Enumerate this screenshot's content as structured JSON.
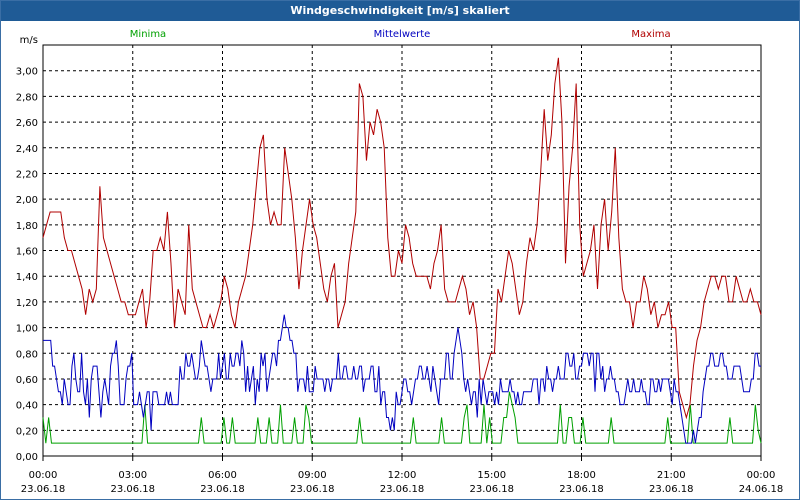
{
  "window": {
    "title": "Windgeschwindigkeit [m/s] skaliert"
  },
  "chart_data": {
    "type": "line",
    "title": "Windgeschwindigkeit [m/s] skaliert",
    "ylabel": "m/s",
    "ylim": [
      0,
      3.2
    ],
    "y_ticks": [
      "0,00",
      "0,20",
      "0,40",
      "0,60",
      "0,80",
      "1,00",
      "1,20",
      "1,40",
      "1,60",
      "1,80",
      "2,00",
      "2,20",
      "2,40",
      "2,60",
      "2,80",
      "3,00"
    ],
    "x_range_hours": [
      0,
      24
    ],
    "x_ticks": [
      {
        "time": "00:00",
        "date": "23.06.18"
      },
      {
        "time": "03:00",
        "date": "23.06.18"
      },
      {
        "time": "06:00",
        "date": "23.06.18"
      },
      {
        "time": "09:00",
        "date": "23.06.18"
      },
      {
        "time": "12:00",
        "date": "23.06.18"
      },
      {
        "time": "15:00",
        "date": "23.06.18"
      },
      {
        "time": "18:00",
        "date": "23.06.18"
      },
      {
        "time": "21:00",
        "date": "23.06.18"
      },
      {
        "time": "00:00",
        "date": "24.06.18"
      }
    ],
    "grid": true,
    "legend_position": "top",
    "series": [
      {
        "name": "Minima",
        "color": "#00a000",
        "values": [
          0.3,
          0.1,
          0.3,
          0.1,
          0.1,
          0.1,
          0.1,
          0.1,
          0.1,
          0.1,
          0.1,
          0.1,
          0.1,
          0.1,
          0.1,
          0.1,
          0.1,
          0.1,
          0.1,
          0.1,
          0.1,
          0.1,
          0.1,
          0.1,
          0.1,
          0.1,
          0.1,
          0.1,
          0.1,
          0.1,
          0.1,
          0.1,
          0.1,
          0.1,
          0.1,
          0.1,
          0.4,
          0.1,
          0.1,
          0.1,
          0.1,
          0.1,
          0.1,
          0.1,
          0.1,
          0.1,
          0.1,
          0.1,
          0.1,
          0.1,
          0.1,
          0.1,
          0.1,
          0.1,
          0.1,
          0.1,
          0.3,
          0.1,
          0.1,
          0.1,
          0.1,
          0.1,
          0.1,
          0.1,
          0.3,
          0.1,
          0.1,
          0.3,
          0.1,
          0.1,
          0.1,
          0.1,
          0.1,
          0.1,
          0.1,
          0.1,
          0.3,
          0.1,
          0.1,
          0.1,
          0.3,
          0.1,
          0.1,
          0.1,
          0.4,
          0.1,
          0.1,
          0.1,
          0.1,
          0.3,
          0.1,
          0.1,
          0.1,
          0.4,
          0.3,
          0.1,
          0.1,
          0.1,
          0.1,
          0.1,
          0.1,
          0.1,
          0.1,
          0.1,
          0.1,
          0.1,
          0.1,
          0.1,
          0.1,
          0.1,
          0.1,
          0.1,
          0.3,
          0.1,
          0.1,
          0.1,
          0.1,
          0.1,
          0.1,
          0.1,
          0.1,
          0.1,
          0.1,
          0.1,
          0.1,
          0.1,
          0.1,
          0.1,
          0.1,
          0.1,
          0.1,
          0.3,
          0.1,
          0.1,
          0.1,
          0.1,
          0.1,
          0.1,
          0.1,
          0.1,
          0.1,
          0.3,
          0.1,
          0.1,
          0.1,
          0.1,
          0.1,
          0.1,
          0.1,
          0.3,
          0.4,
          0.1,
          0.1,
          0.1,
          0.1,
          0.1,
          0.4,
          0.1,
          0.3,
          0.1,
          0.1,
          0.1,
          0.1,
          0.3,
          0.3,
          0.5,
          0.4,
          0.3,
          0.1,
          0.1,
          0.1,
          0.1,
          0.1,
          0.1,
          0.1,
          0.1,
          0.1,
          0.1,
          0.1,
          0.1,
          0.1,
          0.1,
          0.1,
          0.4,
          0.1,
          0.1,
          0.3,
          0.3,
          0.1,
          0.1,
          0.1,
          0.3,
          0.1,
          0.1,
          0.1,
          0.1,
          0.1,
          0.1,
          0.1,
          0.1,
          0.1,
          0.3,
          0.1,
          0.1,
          0.1,
          0.1,
          0.1,
          0.1,
          0.1,
          0.1,
          0.1,
          0.1,
          0.1,
          0.1,
          0.1,
          0.1,
          0.1,
          0.1,
          0.1,
          0.1,
          0.1,
          0.3,
          0.1,
          0.1,
          0.1,
          0.1,
          0.1,
          0.1,
          0.1,
          0.4,
          0.1,
          0.1,
          0.1,
          0.1,
          0.1,
          0.1,
          0.1,
          0.1,
          0.1,
          0.1,
          0.1,
          0.1,
          0.1,
          0.3,
          0.1,
          0.1,
          0.1,
          0.1,
          0.1,
          0.1,
          0.1,
          0.1,
          0.4,
          0.2,
          0.1
        ]
      },
      {
        "name": "Mittelwerte",
        "color": "#0000c0",
        "values": [
          0.9,
          0.9,
          0.9,
          0.9,
          0.9,
          0.7,
          0.7,
          0.6,
          0.5,
          0.5,
          0.4,
          0.6,
          0.5,
          0.4,
          0.4,
          0.7,
          0.8,
          0.6,
          0.5,
          0.5,
          0.8,
          0.5,
          0.4,
          0.6,
          0.3,
          0.6,
          0.7,
          0.7,
          0.7,
          0.5,
          0.3,
          0.5,
          0.6,
          0.5,
          0.4,
          0.7,
          0.8,
          0.8,
          0.9,
          0.7,
          0.4,
          0.4,
          0.4,
          0.6,
          0.7,
          0.7,
          0.8,
          0.4,
          0.4,
          0.4,
          0.5,
          0.4,
          0.3,
          0.4,
          0.5,
          0.5,
          0.2,
          0.5,
          0.5,
          0.5,
          0.4,
          0.4,
          0.4,
          0.4,
          0.5,
          0.4,
          0.5,
          0.4,
          0.4,
          0.4,
          0.4,
          0.7,
          0.6,
          0.6,
          0.8,
          0.7,
          0.7,
          0.8,
          0.7,
          0.6,
          0.6,
          0.7,
          0.9,
          0.8,
          0.7,
          0.7,
          0.6,
          0.5,
          0.6,
          0.6,
          0.6,
          0.8,
          0.6,
          0.7,
          0.8,
          0.6,
          0.6,
          0.8,
          0.7,
          0.7,
          0.8,
          0.8,
          0.7,
          0.9,
          0.8,
          0.5,
          0.7,
          0.5,
          0.6,
          0.7,
          0.4,
          0.6,
          0.5,
          0.8,
          0.7,
          0.8,
          0.5,
          0.6,
          0.7,
          0.8,
          0.8,
          0.7,
          0.9,
          0.9,
          1.0,
          1.1,
          1.0,
          1.0,
          0.9,
          0.9,
          0.8,
          0.8,
          0.5,
          0.6,
          0.6,
          0.6,
          0.5,
          0.7,
          0.5,
          0.5,
          0.5,
          0.7,
          0.6,
          0.6,
          0.6,
          0.6,
          0.5,
          0.6,
          0.6,
          0.5,
          0.6,
          0.6,
          0.6,
          0.8,
          0.6,
          0.6,
          0.7,
          0.7,
          0.6,
          0.6,
          0.6,
          0.7,
          0.6,
          0.6,
          0.7,
          0.7,
          0.5,
          0.6,
          0.6,
          0.6,
          0.7,
          0.7,
          0.5,
          0.5,
          0.7,
          0.4,
          0.5,
          0.5,
          0.3,
          0.3,
          0.2,
          0.3,
          0.2,
          0.5,
          0.4,
          0.4,
          0.5,
          0.6,
          0.6,
          0.5,
          0.5,
          0.4,
          0.5,
          0.6,
          0.6,
          0.7,
          0.7,
          0.6,
          0.6,
          0.7,
          0.6,
          0.5,
          0.7,
          0.6,
          0.5,
          0.4,
          0.6,
          0.6,
          0.6,
          0.8,
          0.8,
          0.6,
          0.6,
          0.8,
          0.9,
          1.0,
          0.9,
          0.8,
          0.6,
          0.5,
          0.6,
          0.5,
          0.4,
          0.5,
          0.5,
          0.3,
          0.6,
          0.4,
          0.6,
          0.5,
          0.4,
          0.5,
          0.5,
          0.5,
          0.4,
          0.5,
          0.4,
          0.6,
          0.5,
          0.5,
          0.5,
          0.5,
          0.6,
          0.5,
          0.5,
          0.4,
          0.5,
          0.4,
          0.4,
          0.5,
          0.5,
          0.5,
          0.5,
          0.5,
          0.6,
          0.6,
          0.6,
          0.4,
          0.6,
          0.6,
          0.5,
          0.7,
          0.6,
          0.6,
          0.5,
          0.6,
          0.6,
          0.7,
          0.6,
          0.6,
          0.6,
          0.8,
          0.8,
          0.7,
          0.7,
          0.8,
          0.6,
          0.6,
          0.7,
          0.7,
          0.8,
          0.8,
          0.8,
          0.7,
          0.8,
          0.8,
          0.5,
          0.8,
          0.8,
          0.6,
          0.7,
          0.5,
          0.6,
          0.6,
          0.7,
          0.6,
          0.6,
          0.5,
          0.5,
          0.4,
          0.4,
          0.4,
          0.5,
          0.6,
          0.5,
          0.5,
          0.6,
          0.5,
          0.5,
          0.5,
          0.6,
          0.5,
          0.5,
          0.4,
          0.4,
          0.6,
          0.6,
          0.5,
          0.5,
          0.6,
          0.5,
          0.6,
          0.6,
          0.6,
          0.6,
          0.5,
          0.4,
          0.6,
          0.5,
          0.5,
          0.4,
          0.3,
          0.2,
          0.1,
          0.1,
          0.1,
          0.1,
          0.2,
          0.1,
          0.2,
          0.3,
          0.3,
          0.5,
          0.6,
          0.7,
          0.7,
          0.8,
          0.8,
          0.7,
          0.7,
          0.7,
          0.8,
          0.8,
          0.7,
          0.7,
          0.6,
          0.6,
          0.6,
          0.7,
          0.7,
          0.7,
          0.7,
          0.6,
          0.5,
          0.5,
          0.5,
          0.5,
          0.6,
          0.6,
          0.8,
          0.8,
          0.7,
          0.7
        ]
      },
      {
        "name": "Maxima",
        "color": "#b00000",
        "values": [
          1.7,
          1.8,
          1.9,
          1.9,
          1.9,
          1.9,
          1.7,
          1.6,
          1.6,
          1.5,
          1.4,
          1.3,
          1.1,
          1.3,
          1.2,
          1.3,
          2.1,
          1.7,
          1.6,
          1.5,
          1.4,
          1.3,
          1.2,
          1.2,
          1.1,
          1.1,
          1.1,
          1.2,
          1.3,
          1.0,
          1.2,
          1.6,
          1.6,
          1.7,
          1.6,
          1.9,
          1.5,
          1.0,
          1.3,
          1.2,
          1.1,
          1.8,
          1.3,
          1.2,
          1.1,
          1.0,
          1.0,
          1.1,
          1.0,
          1.1,
          1.2,
          1.4,
          1.3,
          1.1,
          1.0,
          1.2,
          1.3,
          1.4,
          1.6,
          1.8,
          2.1,
          2.4,
          2.5,
          2.0,
          1.8,
          1.9,
          1.8,
          1.8,
          2.4,
          2.2,
          2.0,
          1.7,
          1.3,
          1.6,
          1.8,
          2.0,
          1.8,
          1.7,
          1.5,
          1.3,
          1.2,
          1.4,
          1.5,
          1.0,
          1.1,
          1.2,
          1.5,
          1.7,
          1.9,
          2.9,
          2.8,
          2.3,
          2.6,
          2.5,
          2.7,
          2.6,
          2.4,
          1.7,
          1.4,
          1.4,
          1.6,
          1.5,
          1.8,
          1.7,
          1.5,
          1.4,
          1.4,
          1.4,
          1.4,
          1.3,
          1.5,
          1.6,
          1.8,
          1.3,
          1.2,
          1.2,
          1.2,
          1.3,
          1.4,
          1.3,
          1.1,
          1.2,
          1.0,
          0.6,
          0.6,
          0.7,
          0.8,
          0.8,
          1.3,
          1.2,
          1.4,
          1.6,
          1.5,
          1.3,
          1.1,
          1.2,
          1.5,
          1.7,
          1.6,
          1.8,
          2.2,
          2.7,
          2.3,
          2.5,
          2.9,
          3.1,
          2.6,
          1.5,
          2.1,
          2.4,
          2.9,
          1.8,
          1.4,
          1.5,
          1.6,
          1.8,
          1.3,
          1.8,
          2.0,
          1.6,
          1.9,
          2.4,
          1.7,
          1.3,
          1.2,
          1.2,
          1.0,
          1.2,
          1.2,
          1.4,
          1.3,
          1.1,
          1.2,
          1.0,
          1.1,
          1.1,
          1.2,
          1.0,
          1.0,
          0.5,
          0.4,
          0.3,
          0.4,
          0.7,
          0.9,
          1.0,
          1.2,
          1.3,
          1.4,
          1.4,
          1.3,
          1.4,
          1.4,
          1.2,
          1.2,
          1.4,
          1.3,
          1.2,
          1.2,
          1.3,
          1.2,
          1.2,
          1.1
        ]
      }
    ]
  }
}
